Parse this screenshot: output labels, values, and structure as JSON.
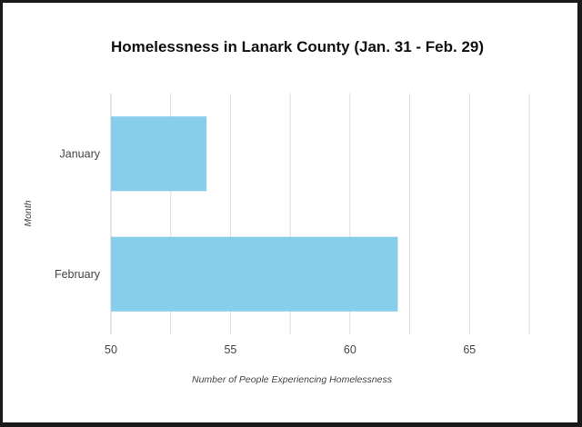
{
  "chart_data": {
    "type": "bar",
    "orientation": "horizontal",
    "title": "Homelessness in Lanark County (Jan. 31 - Feb. 29)",
    "xlabel": "Number of People Experiencing Homelessness",
    "ylabel": "Month",
    "categories": [
      "January",
      "February"
    ],
    "values": [
      54,
      62
    ],
    "xlim": [
      50,
      67.5
    ],
    "xticks": [
      50,
      55,
      60,
      65
    ],
    "grid": true,
    "legend": "none",
    "bar_color": "#87CEEB"
  }
}
